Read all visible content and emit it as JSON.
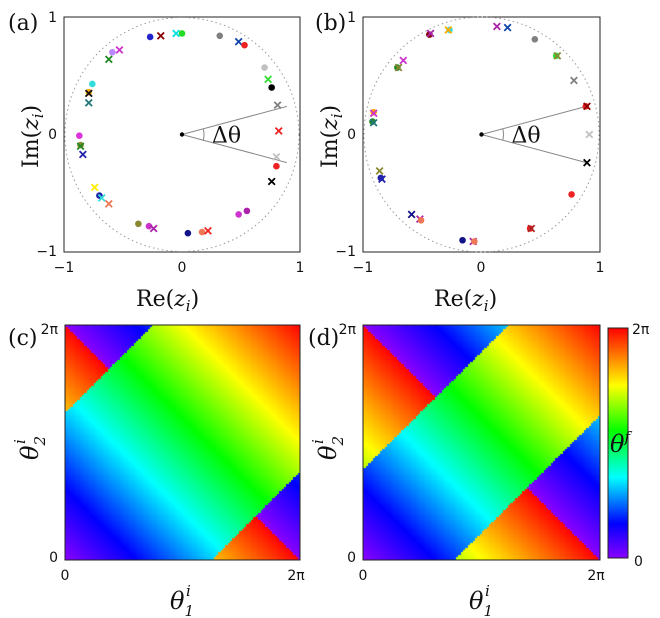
{
  "chart_data": [
    {
      "type": "scatter",
      "panel_label": "(a)",
      "xlabel": "Re(z_i)",
      "ylabel": "Im(z_i)",
      "xlim": [
        -1,
        1
      ],
      "ylim": [
        -1,
        1
      ],
      "x_ticks": [
        "−1",
        "0",
        "1"
      ],
      "y_ticks": [
        "−1",
        "0",
        "1"
      ],
      "annotation": "Δθ",
      "unit_circle": true,
      "wedge_angle_deg": 30,
      "points": [
        {
          "x": 0.0,
          "y": 0.86,
          "marker": "circle",
          "color": "#22dd22"
        },
        {
          "x": -0.05,
          "y": 0.86,
          "marker": "x",
          "color": "#00e0e0"
        },
        {
          "x": -0.18,
          "y": 0.84,
          "marker": "x",
          "color": "#880000"
        },
        {
          "x": -0.27,
          "y": 0.83,
          "marker": "circle",
          "color": "#2222cc"
        },
        {
          "x": 0.32,
          "y": 0.84,
          "marker": "circle",
          "color": "#808080"
        },
        {
          "x": 0.48,
          "y": 0.79,
          "marker": "x",
          "color": "#1144aa"
        },
        {
          "x": 0.53,
          "y": 0.76,
          "marker": "circle",
          "color": "#ee2222"
        },
        {
          "x": -0.53,
          "y": 0.72,
          "marker": "x",
          "color": "#cc33cc"
        },
        {
          "x": -0.59,
          "y": 0.7,
          "marker": "circle",
          "color": "#bb88ff"
        },
        {
          "x": -0.62,
          "y": 0.64,
          "marker": "x",
          "color": "#228822"
        },
        {
          "x": 0.7,
          "y": 0.57,
          "marker": "circle",
          "color": "#c0c0c0"
        },
        {
          "x": 0.73,
          "y": 0.47,
          "marker": "x",
          "color": "#33dd33"
        },
        {
          "x": 0.76,
          "y": 0.4,
          "marker": "circle",
          "color": "#000000"
        },
        {
          "x": -0.76,
          "y": 0.43,
          "marker": "circle",
          "color": "#33dddd"
        },
        {
          "x": -0.79,
          "y": 0.36,
          "marker": "circle",
          "color": "#ffaa00"
        },
        {
          "x": -0.79,
          "y": 0.35,
          "marker": "x",
          "color": "#111111"
        },
        {
          "x": -0.79,
          "y": 0.27,
          "marker": "x",
          "color": "#227777"
        },
        {
          "x": 0.81,
          "y": 0.25,
          "marker": "x",
          "color": "#808080"
        },
        {
          "x": 0.82,
          "y": 0.03,
          "marker": "x",
          "color": "#ee2222"
        },
        {
          "x": -0.87,
          "y": -0.01,
          "marker": "circle",
          "color": "#dd33dd"
        },
        {
          "x": -0.86,
          "y": -0.09,
          "marker": "circle",
          "color": "#888833"
        },
        {
          "x": -0.86,
          "y": -0.1,
          "marker": "x",
          "color": "#228822"
        },
        {
          "x": -0.84,
          "y": -0.17,
          "marker": "x",
          "color": "#2222aa"
        },
        {
          "x": 0.8,
          "y": -0.19,
          "marker": "x",
          "color": "#c0c0c0"
        },
        {
          "x": 0.8,
          "y": -0.27,
          "marker": "circle",
          "color": "#ee2222"
        },
        {
          "x": 0.76,
          "y": -0.4,
          "marker": "x",
          "color": "#000000"
        },
        {
          "x": -0.74,
          "y": -0.45,
          "marker": "x",
          "color": "#ffee00"
        },
        {
          "x": -0.7,
          "y": -0.52,
          "marker": "circle",
          "color": "#2222aa"
        },
        {
          "x": -0.68,
          "y": -0.54,
          "marker": "x",
          "color": "#33dddd"
        },
        {
          "x": -0.62,
          "y": -0.59,
          "marker": "x",
          "color": "#ee7755"
        },
        {
          "x": 0.55,
          "y": -0.65,
          "marker": "circle",
          "color": "#aa22aa"
        },
        {
          "x": 0.48,
          "y": -0.68,
          "marker": "circle",
          "color": "#cc33cc"
        },
        {
          "x": -0.37,
          "y": -0.76,
          "marker": "circle",
          "color": "#888833"
        },
        {
          "x": -0.28,
          "y": -0.78,
          "marker": "circle",
          "color": "#cc33cc"
        },
        {
          "x": -0.24,
          "y": -0.8,
          "marker": "x",
          "color": "#aa22aa"
        },
        {
          "x": 0.05,
          "y": -0.84,
          "marker": "circle",
          "color": "#111188"
        },
        {
          "x": 0.17,
          "y": -0.83,
          "marker": "circle",
          "color": "#ee7755"
        },
        {
          "x": 0.22,
          "y": -0.82,
          "marker": "x",
          "color": "#ee2222"
        }
      ]
    },
    {
      "type": "scatter",
      "panel_label": "(b)",
      "xlabel": "Re(z_i)",
      "ylabel": "Im(z_i)",
      "xlim": [
        -1,
        1
      ],
      "ylim": [
        -1,
        1
      ],
      "x_ticks": [
        "−1",
        "0",
        "1"
      ],
      "y_ticks": [
        "−1",
        "0",
        "1"
      ],
      "annotation": "Δθ",
      "unit_circle": true,
      "wedge_angle_deg": 30,
      "points": [
        {
          "x": -0.27,
          "y": 0.89,
          "marker": "circle",
          "color": "#33dddd"
        },
        {
          "x": -0.28,
          "y": 0.89,
          "marker": "x",
          "color": "#ffaa00"
        },
        {
          "x": 0.13,
          "y": 0.92,
          "marker": "x",
          "color": "#aa22aa"
        },
        {
          "x": 0.22,
          "y": 0.91,
          "marker": "x",
          "color": "#1144aa"
        },
        {
          "x": -0.44,
          "y": 0.85,
          "marker": "circle",
          "color": "#880000"
        },
        {
          "x": -0.43,
          "y": 0.86,
          "marker": "x",
          "color": "#aa22aa"
        },
        {
          "x": 0.45,
          "y": 0.81,
          "marker": "circle",
          "color": "#808080"
        },
        {
          "x": -0.66,
          "y": 0.63,
          "marker": "x",
          "color": "#cc33cc"
        },
        {
          "x": -0.71,
          "y": 0.57,
          "marker": "circle",
          "color": "#228822"
        },
        {
          "x": -0.7,
          "y": 0.57,
          "marker": "x",
          "color": "#888833"
        },
        {
          "x": 0.63,
          "y": 0.67,
          "marker": "circle",
          "color": "#33dd33"
        },
        {
          "x": 0.64,
          "y": 0.67,
          "marker": "x",
          "color": "#888833"
        },
        {
          "x": 0.78,
          "y": 0.46,
          "marker": "x",
          "color": "#808080"
        },
        {
          "x": 0.88,
          "y": 0.24,
          "marker": "circle",
          "color": "#ee2222"
        },
        {
          "x": 0.89,
          "y": 0.24,
          "marker": "x",
          "color": "#880000"
        },
        {
          "x": -0.91,
          "y": 0.19,
          "marker": "circle",
          "color": "#ffaa00"
        },
        {
          "x": -0.91,
          "y": 0.18,
          "marker": "x",
          "color": "#cc33cc"
        },
        {
          "x": -0.92,
          "y": 0.11,
          "marker": "circle",
          "color": "#228822"
        },
        {
          "x": -0.91,
          "y": 0.1,
          "marker": "x",
          "color": "#227777"
        },
        {
          "x": 0.91,
          "y": 0.0,
          "marker": "x",
          "color": "#c0c0c0"
        },
        {
          "x": 0.89,
          "y": -0.24,
          "marker": "x",
          "color": "#000000"
        },
        {
          "x": -0.86,
          "y": -0.31,
          "marker": "x",
          "color": "#888833"
        },
        {
          "x": -0.84,
          "y": -0.38,
          "marker": "x",
          "color": "#2222aa"
        },
        {
          "x": -0.85,
          "y": -0.37,
          "marker": "circle",
          "color": "#2222aa"
        },
        {
          "x": 0.76,
          "y": -0.51,
          "marker": "circle",
          "color": "#ee2222"
        },
        {
          "x": -0.59,
          "y": -0.68,
          "marker": "x",
          "color": "#111188"
        },
        {
          "x": -0.52,
          "y": -0.72,
          "marker": "x",
          "color": "#aa22aa"
        },
        {
          "x": -0.51,
          "y": -0.73,
          "marker": "circle",
          "color": "#ee7755"
        },
        {
          "x": 0.41,
          "y": -0.8,
          "marker": "circle",
          "color": "#ee2222"
        },
        {
          "x": 0.42,
          "y": -0.8,
          "marker": "x",
          "color": "#aa2222"
        },
        {
          "x": -0.16,
          "y": -0.9,
          "marker": "circle",
          "color": "#111188"
        },
        {
          "x": -0.07,
          "y": -0.91,
          "marker": "x",
          "color": "#aa22aa"
        },
        {
          "x": -0.06,
          "y": -0.91,
          "marker": "circle",
          "color": "#ee7755"
        }
      ]
    },
    {
      "type": "heatmap",
      "panel_label": "(c)",
      "xlabel": "θ_1^i",
      "ylabel": "θ_2^i",
      "xlim": [
        0,
        6.2832
      ],
      "ylim": [
        0,
        6.2832
      ],
      "x_ticks": [
        "0",
        "2π"
      ],
      "y_ticks": [
        "0",
        "2π"
      ],
      "function": "theta_f = ((theta1 + theta2)/2 + pi*[|theta1 - theta2| > 3.9]) mod 2pi",
      "colormap": "rainbow (purple → blue → cyan → green → yellow → red)"
    },
    {
      "type": "heatmap",
      "panel_label": "(d)",
      "xlabel": "θ_1^i",
      "ylabel": "θ_2^i",
      "xlim": [
        0,
        6.2832
      ],
      "ylim": [
        0,
        6.2832
      ],
      "x_ticks": [
        "0",
        "2π"
      ],
      "y_ticks": [
        "0",
        "2π"
      ],
      "function": "theta_f = ((theta1 + theta2)/2 + pi*[|theta1 - theta2| > 2.4]) mod 2pi",
      "colormap": "rainbow (purple → blue → cyan → green → yellow → red)",
      "colorbar": {
        "label": "θ^f",
        "min_label": "0",
        "max_label": "2π",
        "range": [
          0,
          6.2832
        ]
      }
    }
  ]
}
